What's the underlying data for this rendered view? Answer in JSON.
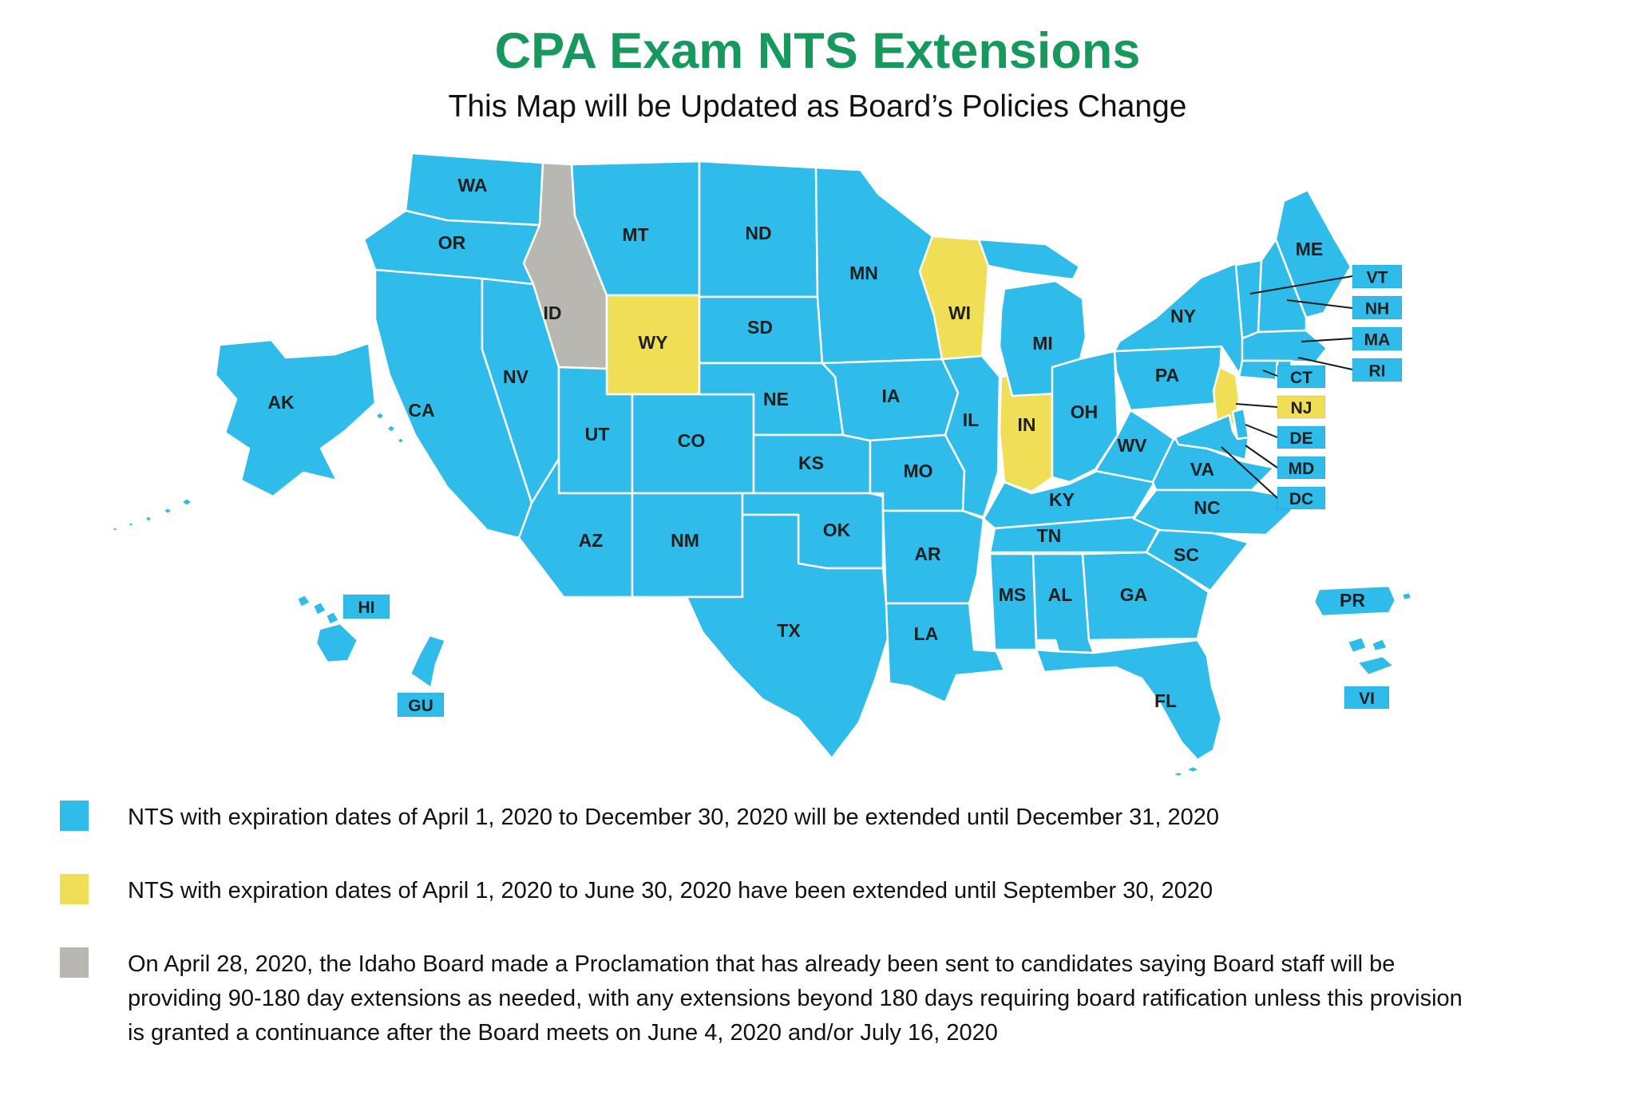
{
  "title": "CPA Exam NTS Extensions",
  "subtitle": "This Map will be Updated as Board’s Policies Change",
  "colors": {
    "title_green": "#17995E",
    "blue": "#2FBCEA",
    "yellow": "#F1DE57",
    "gray": "#B9B7B2",
    "label_text": "#1F1F1F",
    "callout_line": "#1a1a1a"
  },
  "legend": [
    {
      "color": "blue",
      "text": "NTS with expiration dates of April 1, 2020 to December 30, 2020 will be extended until December 31, 2020"
    },
    {
      "color": "yellow",
      "text": "NTS with expiration dates of April 1, 2020 to June 30, 2020 have been extended until September 30, 2020"
    },
    {
      "color": "gray",
      "text": "On April 28, 2020, the Idaho Board made a Proclamation that has already been sent to candidates saying Board staff will be providing 90-180 day extensions as needed, with any extensions beyond 180 days requiring board ratification unless this provision is granted a continuance after the Board meets on June 4, 2020 and/or July 16, 2020"
    }
  ],
  "map": {
    "states": [
      {
        "id": "WA",
        "label": "WA",
        "status": "blue"
      },
      {
        "id": "OR",
        "label": "OR",
        "status": "blue"
      },
      {
        "id": "CA",
        "label": "CA",
        "status": "blue"
      },
      {
        "id": "NV",
        "label": "NV",
        "status": "blue"
      },
      {
        "id": "ID",
        "label": "ID",
        "status": "gray"
      },
      {
        "id": "MT",
        "label": "MT",
        "status": "blue"
      },
      {
        "id": "WY",
        "label": "WY",
        "status": "yellow"
      },
      {
        "id": "UT",
        "label": "UT",
        "status": "blue"
      },
      {
        "id": "CO",
        "label": "CO",
        "status": "blue"
      },
      {
        "id": "AZ",
        "label": "AZ",
        "status": "blue"
      },
      {
        "id": "NM",
        "label": "NM",
        "status": "blue"
      },
      {
        "id": "ND",
        "label": "ND",
        "status": "blue"
      },
      {
        "id": "SD",
        "label": "SD",
        "status": "blue"
      },
      {
        "id": "NE",
        "label": "NE",
        "status": "blue"
      },
      {
        "id": "KS",
        "label": "KS",
        "status": "blue"
      },
      {
        "id": "OK",
        "label": "OK",
        "status": "blue"
      },
      {
        "id": "TX",
        "label": "TX",
        "status": "blue"
      },
      {
        "id": "MN",
        "label": "MN",
        "status": "blue"
      },
      {
        "id": "IA",
        "label": "IA",
        "status": "blue"
      },
      {
        "id": "MO",
        "label": "MO",
        "status": "blue"
      },
      {
        "id": "AR",
        "label": "AR",
        "status": "blue"
      },
      {
        "id": "LA",
        "label": "LA",
        "status": "blue"
      },
      {
        "id": "WI",
        "label": "WI",
        "status": "yellow"
      },
      {
        "id": "IL",
        "label": "IL",
        "status": "blue"
      },
      {
        "id": "IN",
        "label": "IN",
        "status": "yellow"
      },
      {
        "id": "MI",
        "label": "MI",
        "status": "blue"
      },
      {
        "id": "OH",
        "label": "OH",
        "status": "blue"
      },
      {
        "id": "KY",
        "label": "KY",
        "status": "blue"
      },
      {
        "id": "TN",
        "label": "TN",
        "status": "blue"
      },
      {
        "id": "MS",
        "label": "MS",
        "status": "blue"
      },
      {
        "id": "AL",
        "label": "AL",
        "status": "blue"
      },
      {
        "id": "GA",
        "label": "GA",
        "status": "blue"
      },
      {
        "id": "FL",
        "label": "FL",
        "status": "blue"
      },
      {
        "id": "WV",
        "label": "WV",
        "status": "blue"
      },
      {
        "id": "VA",
        "label": "VA",
        "status": "blue"
      },
      {
        "id": "NC",
        "label": "NC",
        "status": "blue"
      },
      {
        "id": "SC",
        "label": "SC",
        "status": "blue"
      },
      {
        "id": "PA",
        "label": "PA",
        "status": "blue"
      },
      {
        "id": "NY",
        "label": "NY",
        "status": "blue"
      },
      {
        "id": "ME",
        "label": "ME",
        "status": "blue"
      },
      {
        "id": "VT",
        "label": "",
        "status": "blue"
      },
      {
        "id": "NH",
        "label": "",
        "status": "blue"
      },
      {
        "id": "MA",
        "label": "",
        "status": "blue"
      },
      {
        "id": "RI",
        "label": "",
        "status": "blue"
      },
      {
        "id": "CT",
        "label": "",
        "status": "blue"
      },
      {
        "id": "NJ",
        "label": "",
        "status": "yellow"
      },
      {
        "id": "DE",
        "label": "",
        "status": "blue"
      },
      {
        "id": "MD",
        "label": "",
        "status": "blue"
      },
      {
        "id": "AK",
        "label": "AK",
        "status": "blue"
      },
      {
        "id": "HI",
        "label": "",
        "status": "blue"
      },
      {
        "id": "GU",
        "label": "",
        "status": "blue"
      },
      {
        "id": "PR",
        "label": "PR",
        "status": "blue"
      },
      {
        "id": "VI",
        "label": "",
        "status": "blue"
      }
    ],
    "callout_boxes": [
      {
        "id": "VT",
        "label": "VT",
        "status": "blue"
      },
      {
        "id": "NH",
        "label": "NH",
        "status": "blue"
      },
      {
        "id": "MA",
        "label": "MA",
        "status": "blue"
      },
      {
        "id": "RI",
        "label": "RI",
        "status": "blue"
      },
      {
        "id": "CT",
        "label": "CT",
        "status": "blue"
      },
      {
        "id": "NJ",
        "label": "NJ",
        "status": "yellow"
      },
      {
        "id": "DE",
        "label": "DE",
        "status": "blue"
      },
      {
        "id": "MD",
        "label": "MD",
        "status": "blue"
      },
      {
        "id": "DC",
        "label": "DC",
        "status": "blue"
      },
      {
        "id": "HI",
        "label": "HI",
        "status": "blue"
      },
      {
        "id": "GU",
        "label": "GU",
        "status": "blue"
      },
      {
        "id": "VI",
        "label": "VI",
        "status": "blue"
      }
    ]
  }
}
